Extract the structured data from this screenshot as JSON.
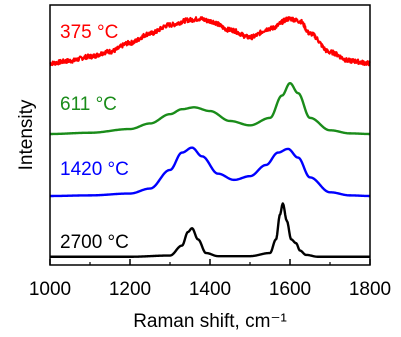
{
  "chart_data": {
    "type": "line",
    "title": "",
    "xlabel": "Raman shift, cm⁻¹",
    "ylabel": "Intensity",
    "xlim": [
      1000,
      1800
    ],
    "xticks": [
      1000,
      1200,
      1400,
      1600,
      1800
    ],
    "xtick_labels": [
      "1000",
      "1200",
      "1400",
      "1600",
      "1800"
    ],
    "y_scale": "offset stacked, arbitrary units, no ticks",
    "grid": false,
    "legend": "none; series labeled inline at left",
    "series": [
      {
        "name": "375 °C",
        "color": "#ff0000",
        "offset": 3.0,
        "noisy": true,
        "x": [
          1000,
          1050,
          1100,
          1150,
          1200,
          1250,
          1300,
          1350,
          1375,
          1400,
          1450,
          1500,
          1550,
          1600,
          1625,
          1650,
          1700,
          1750,
          1800
        ],
        "y": [
          0.14,
          0.18,
          0.25,
          0.33,
          0.47,
          0.62,
          0.76,
          0.84,
          0.86,
          0.82,
          0.68,
          0.56,
          0.7,
          0.86,
          0.82,
          0.62,
          0.32,
          0.18,
          0.14
        ]
      },
      {
        "name": "611 °C",
        "color": "#1a8c1a",
        "offset": 2.0,
        "noisy": false,
        "x": [
          1000,
          1100,
          1200,
          1250,
          1300,
          1330,
          1360,
          1400,
          1450,
          1500,
          1550,
          1580,
          1600,
          1620,
          1650,
          1700,
          1750,
          1800
        ],
        "y": [
          0.0,
          0.02,
          0.08,
          0.17,
          0.32,
          0.4,
          0.43,
          0.37,
          0.21,
          0.14,
          0.26,
          0.62,
          0.82,
          0.66,
          0.26,
          0.06,
          0.01,
          0.0
        ]
      },
      {
        "name": "1420 °C",
        "color": "#0000ff",
        "offset": 1.0,
        "noisy": false,
        "x": [
          1000,
          1100,
          1200,
          1250,
          1300,
          1330,
          1355,
          1380,
          1420,
          1460,
          1500,
          1540,
          1570,
          1595,
          1620,
          1650,
          1700,
          1750,
          1800
        ],
        "y": [
          0.0,
          0.01,
          0.04,
          0.12,
          0.42,
          0.7,
          0.78,
          0.64,
          0.36,
          0.26,
          0.32,
          0.5,
          0.7,
          0.76,
          0.62,
          0.3,
          0.06,
          0.01,
          0.0
        ]
      },
      {
        "name": "2700 °C",
        "color": "#000000",
        "offset": 0.0,
        "noisy": false,
        "x": [
          1000,
          1200,
          1300,
          1330,
          1345,
          1355,
          1370,
          1390,
          1420,
          1500,
          1550,
          1565,
          1575,
          1582,
          1592,
          1603,
          1615,
          1625,
          1640,
          1670,
          1800
        ],
        "y": [
          0.02,
          0.02,
          0.04,
          0.2,
          0.42,
          0.48,
          0.3,
          0.08,
          0.03,
          0.03,
          0.08,
          0.3,
          0.7,
          0.88,
          0.6,
          0.3,
          0.24,
          0.12,
          0.05,
          0.02,
          0.02
        ]
      }
    ]
  }
}
